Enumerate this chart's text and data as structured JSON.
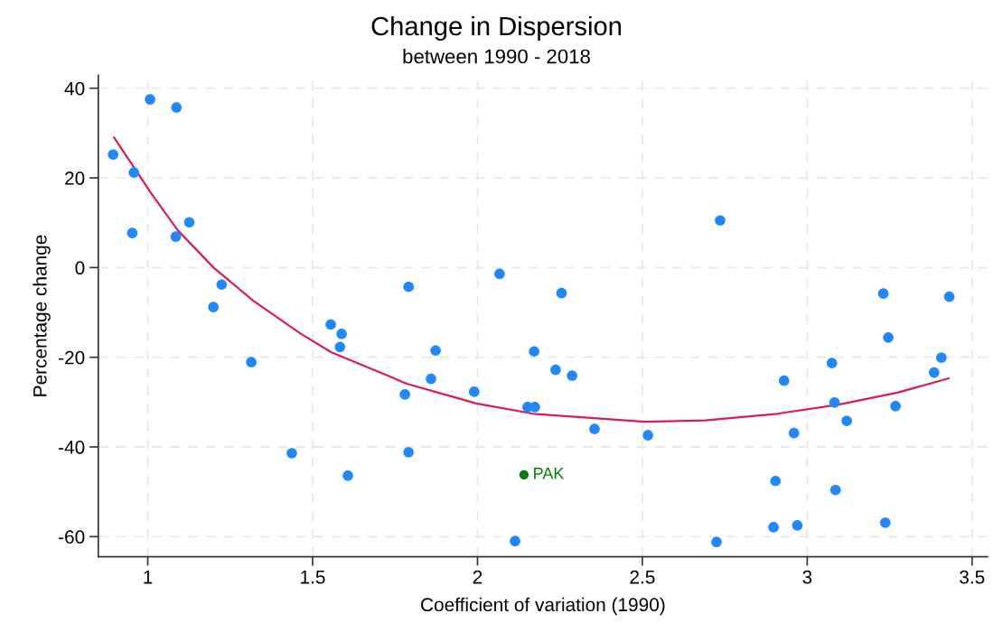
{
  "chart_data": {
    "type": "scatter",
    "title": "Change in Dispersion",
    "subtitle": "between 1990 - 2018",
    "xlabel": "Coefficient of variation (1990)",
    "ylabel": "Percentage change",
    "xlim": [
      0.85,
      3.547
    ],
    "ylim": [
      -64.5,
      42.9
    ],
    "xticks": [
      1,
      1.5,
      2,
      2.5,
      3,
      3.5
    ],
    "yticks": [
      -60,
      -40,
      -20,
      0,
      20,
      40
    ],
    "grid": true,
    "series": [
      {
        "color": "#1e88ff",
        "marker": "circle",
        "x": [
          0.895,
          0.958,
          0.953,
          1.007,
          1.087,
          1.085,
          1.126,
          1.224,
          1.199,
          1.314,
          1.437,
          1.555,
          1.588,
          1.583,
          1.607,
          1.791,
          1.78,
          1.791,
          1.859,
          1.873,
          1.99,
          2.067,
          2.114,
          2.152,
          2.174,
          2.172,
          2.237,
          2.287,
          2.255,
          2.355,
          2.517,
          2.736,
          2.725,
          2.898,
          2.97,
          2.904,
          2.93,
          2.96,
          3.075,
          3.083,
          3.086,
          3.12,
          3.231,
          3.246,
          3.268,
          3.237,
          3.385,
          3.407,
          3.431
        ],
        "values": [
          25.2,
          21.2,
          7.7,
          37.5,
          35.7,
          6.9,
          10.1,
          -3.8,
          -8.8,
          -21.1,
          -41.4,
          -12.7,
          -14.8,
          -17.7,
          -46.4,
          -4.3,
          -28.3,
          -41.2,
          -24.8,
          -18.5,
          -27.7,
          -1.4,
          -61.0,
          -31.1,
          -31.1,
          -18.7,
          -22.8,
          -24.1,
          -5.7,
          -36.0,
          -37.4,
          10.5,
          -61.2,
          -57.9,
          -57.5,
          -47.6,
          -25.2,
          -36.9,
          -21.3,
          -30.1,
          -49.6,
          -34.2,
          -5.8,
          -15.6,
          -30.9,
          -56.9,
          -23.4,
          -20.1,
          -6.5
        ]
      },
      {
        "name": "PAK",
        "color": "#008000",
        "marker": "circle",
        "x": [
          2.141
        ],
        "values": [
          -46.2
        ]
      },
      {
        "type": "line",
        "color": "#d81b60",
        "line_style": "solid",
        "marker": "none",
        "x": [
          0.898,
          1.009,
          1.091,
          1.201,
          1.32,
          1.465,
          1.557,
          1.731,
          1.785,
          1.996,
          2.169,
          2.507,
          2.635,
          2.69,
          2.909,
          3.092,
          3.274,
          3.429
        ],
        "values": [
          29.0,
          16.7,
          8.3,
          -0.1,
          -7.4,
          -14.8,
          -18.9,
          -24.2,
          -25.9,
          -30.3,
          -32.6,
          -34.4,
          -34.2,
          -34.1,
          -32.6,
          -30.6,
          -27.9,
          -24.7
        ]
      }
    ]
  }
}
